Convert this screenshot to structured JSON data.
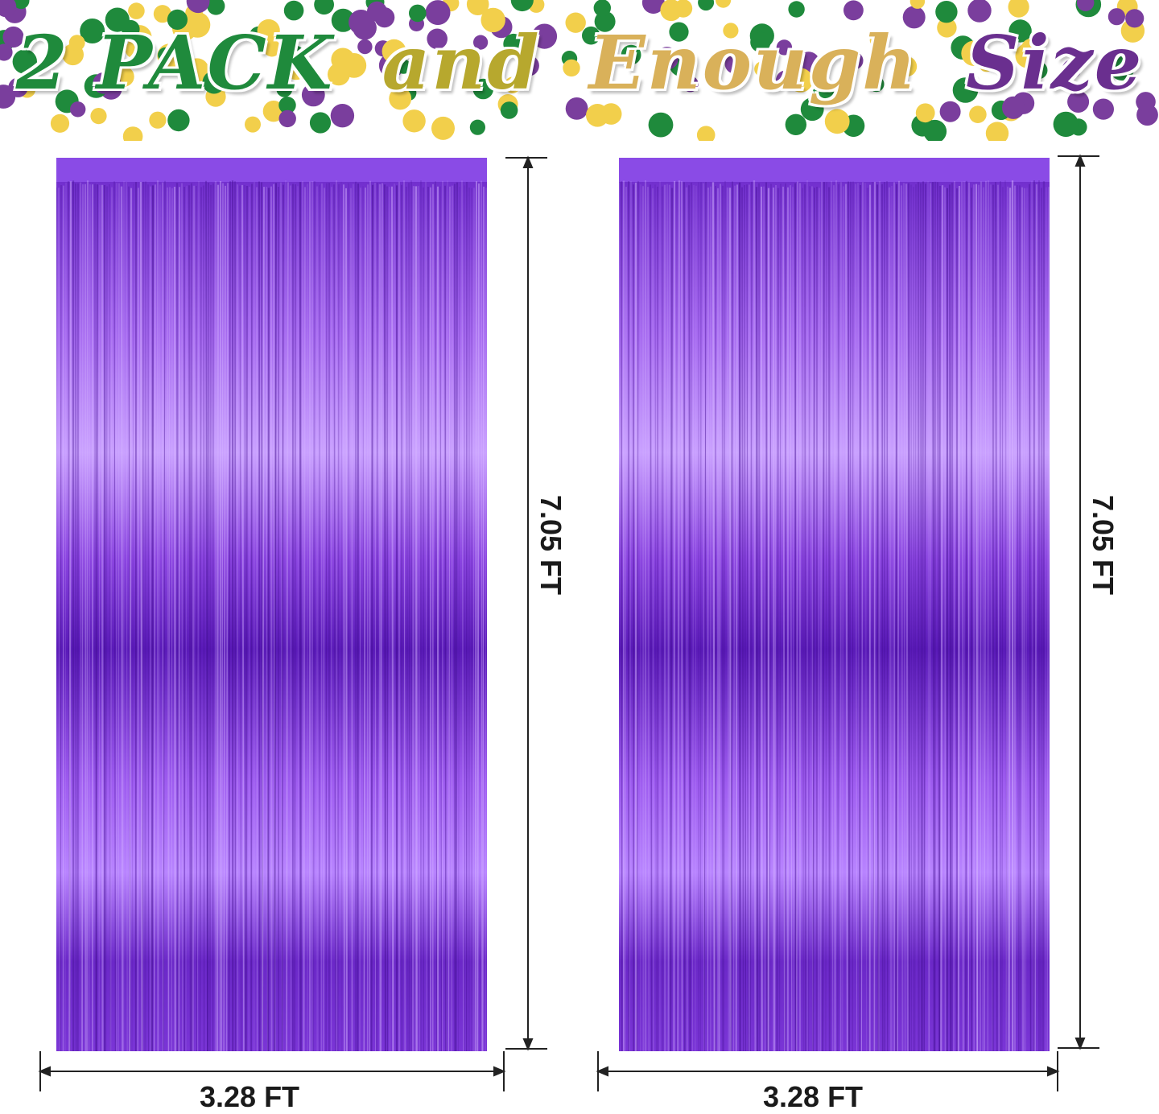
{
  "banner": {
    "title_parts": [
      {
        "text": "2 PACK",
        "color": "#1f8a3c"
      },
      {
        "text": "and",
        "color": "#b7a82e"
      },
      {
        "text": "Enough",
        "color": "#d9b15a"
      },
      {
        "text": "Size",
        "color": "#6a2f8f"
      }
    ],
    "confetti_colors": [
      "#1f8a3c",
      "#f2cf4b",
      "#7a3e9d"
    ]
  },
  "curtains": [
    {
      "name": "curtain-left",
      "color": "#7a35d6",
      "height_label": "7.05 FT",
      "width_label": "3.28 FT"
    },
    {
      "name": "curtain-right",
      "color": "#7a35d6",
      "height_label": "7.05 FT",
      "width_label": "3.28 FT"
    }
  ]
}
